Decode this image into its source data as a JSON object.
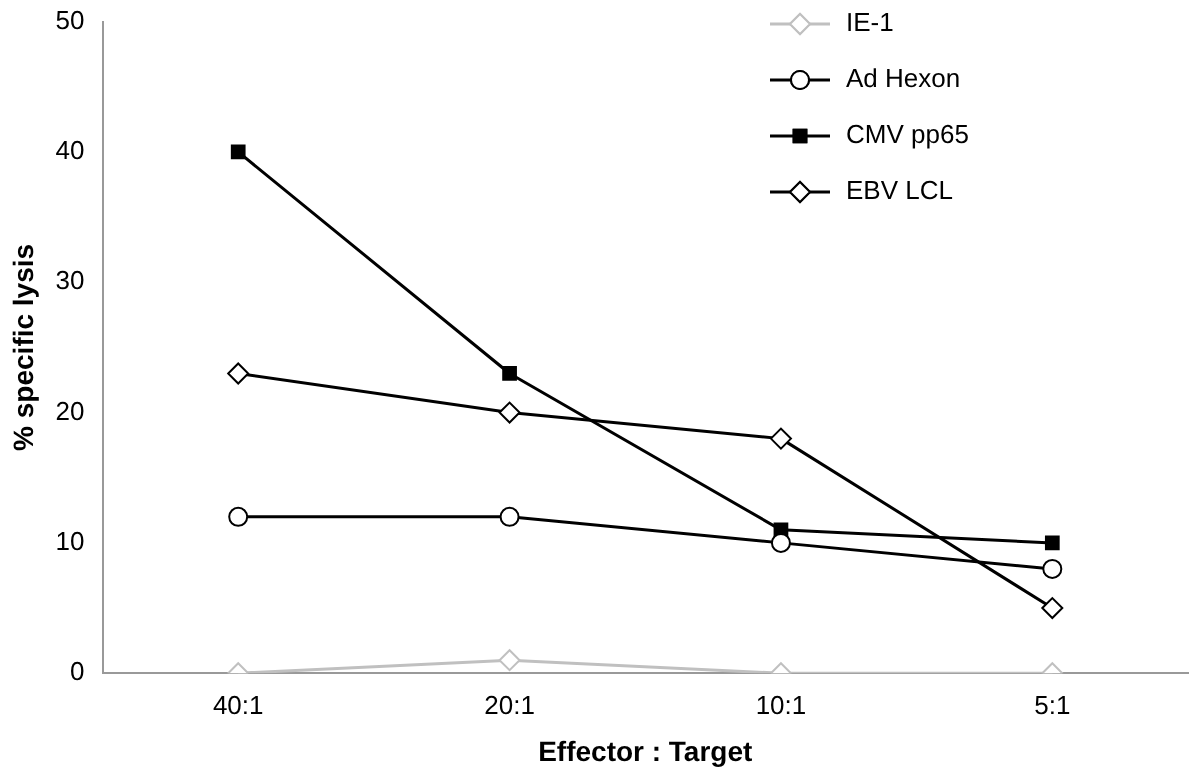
{
  "chart_data": {
    "type": "line",
    "xlabel": "Effector : Target",
    "ylabel": "% specific lysis",
    "categories": [
      "40:1",
      "20:1",
      "10:1",
      "5:1"
    ],
    "series": [
      {
        "name": "IE-1",
        "color": "#c0c0c0",
        "marker": "diamond",
        "values": [
          0,
          1,
          0,
          0
        ]
      },
      {
        "name": "Ad Hexon",
        "color": "#000000",
        "marker": "circle",
        "values": [
          12,
          12,
          10,
          8
        ]
      },
      {
        "name": "CMV pp65",
        "color": "#000000",
        "marker": "square",
        "values": [
          40,
          23,
          11,
          10
        ]
      },
      {
        "name": "EBV LCL",
        "color": "#000000",
        "marker": "diamond",
        "values": [
          23,
          20,
          18,
          5
        ]
      }
    ],
    "ylim": [
      0,
      50
    ],
    "yticks": [
      0,
      10,
      20,
      30,
      40,
      50
    ],
    "grid": false,
    "legend": "top right"
  }
}
